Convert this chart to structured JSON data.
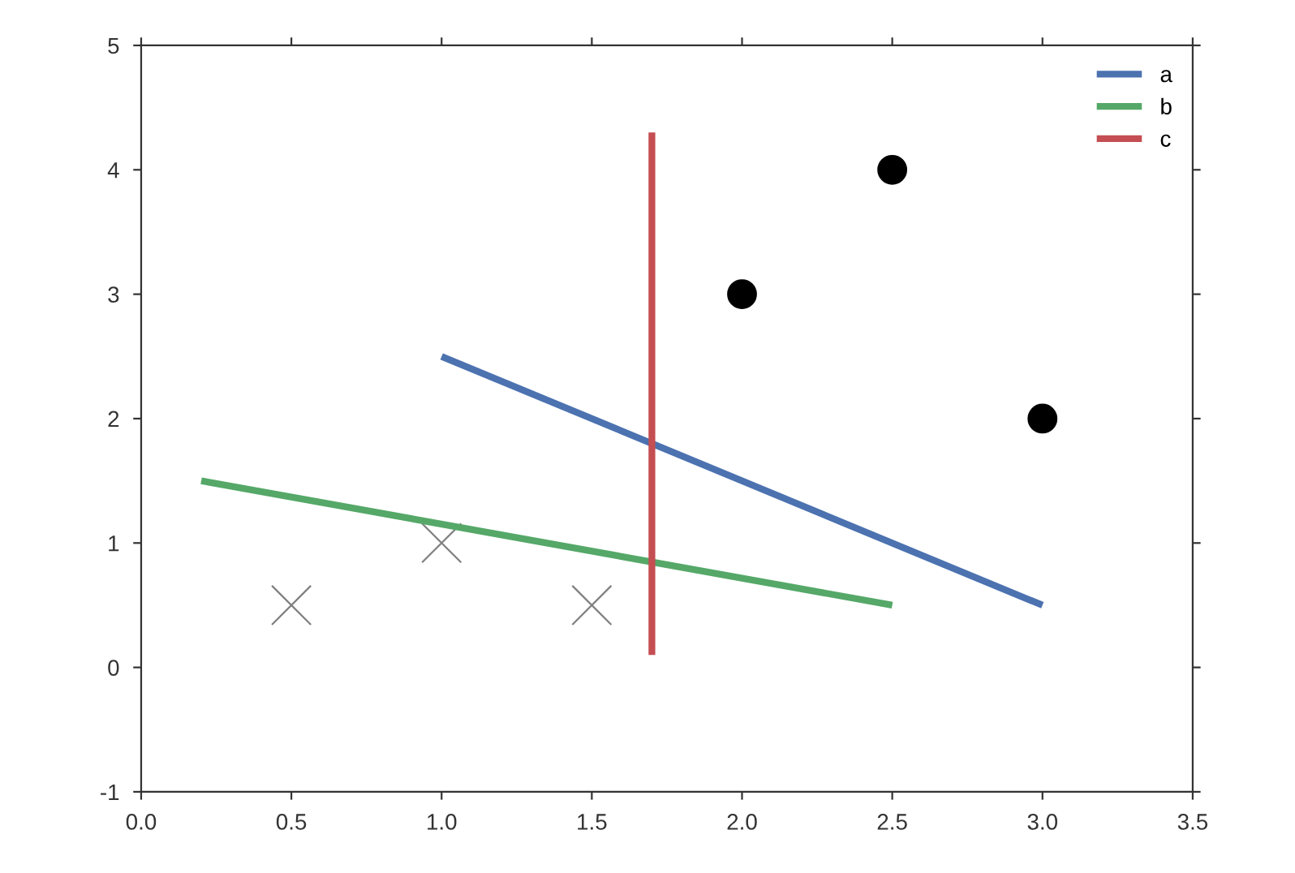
{
  "chart_data": {
    "type": "line",
    "xlim": [
      0,
      3.5
    ],
    "ylim": [
      -1,
      5
    ],
    "xticks": [
      {
        "value": 0,
        "label": "0.0"
      },
      {
        "value": 0.5,
        "label": "0.5"
      },
      {
        "value": 1,
        "label": "1.0"
      },
      {
        "value": 1.5,
        "label": "1.5"
      },
      {
        "value": 2,
        "label": "2.0"
      },
      {
        "value": 2.5,
        "label": "2.5"
      },
      {
        "value": 3,
        "label": "3.0"
      },
      {
        "value": 3.5,
        "label": "3.5"
      }
    ],
    "yticks": [
      -1,
      0,
      1,
      2,
      3,
      4,
      5
    ],
    "grid": false,
    "legend": "top right",
    "series": [
      {
        "name": "a",
        "color": "#4c72b0",
        "x": [
          1,
          3
        ],
        "values": [
          2.5,
          0.5
        ]
      },
      {
        "name": "b",
        "color": "#55a868",
        "x": [
          0.2,
          2.5
        ],
        "values": [
          1.5,
          0.5
        ]
      },
      {
        "name": "c",
        "color": "#c44e52",
        "x": [
          1.7,
          1.7
        ],
        "values": [
          0.1,
          4.3
        ]
      },
      {
        "type": "scatter",
        "color": "#000000",
        "marker": "circle",
        "x": [
          2,
          2.5,
          3
        ],
        "values": [
          3,
          4,
          2
        ]
      },
      {
        "type": "scatter",
        "color": "#808080",
        "marker": "cross",
        "x": [
          0.5,
          1,
          1.5
        ],
        "values": [
          0.5,
          1,
          0.5
        ]
      }
    ]
  }
}
